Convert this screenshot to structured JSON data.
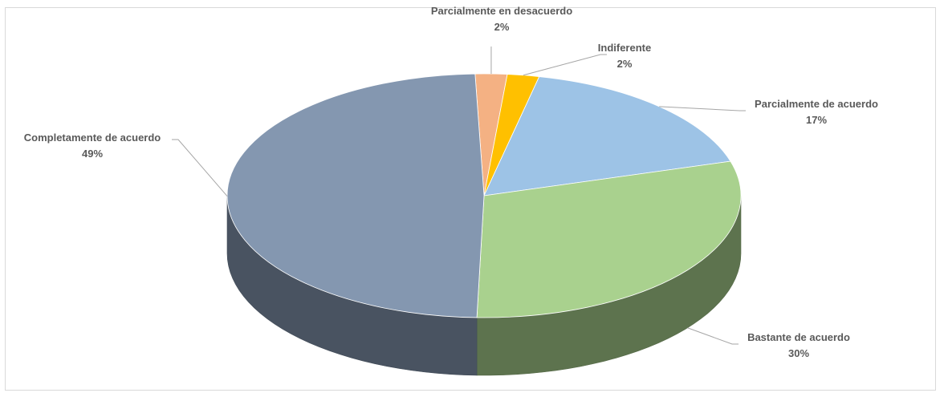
{
  "chart_data": {
    "type": "pie",
    "style": "3d",
    "start": "Parcialmente en desacuerdo",
    "slices": [
      {
        "label": "Parcialmente en desacuerdo",
        "value": 2,
        "value_label": "2%",
        "color": "#f4b183"
      },
      {
        "label": "Indiferente",
        "value": 2,
        "value_label": "2%",
        "color": "#ffc000"
      },
      {
        "label": "Parcialmente de acuerdo",
        "value": 17,
        "value_label": "17%",
        "color": "#9dc3e6"
      },
      {
        "label": "Bastante de acuerdo",
        "value": 30,
        "value_label": "30%",
        "color": "#a9d18e"
      },
      {
        "label": "Completamente de acuerdo",
        "value": 49,
        "value_label": "49%",
        "color": "#8497b0"
      }
    ]
  }
}
